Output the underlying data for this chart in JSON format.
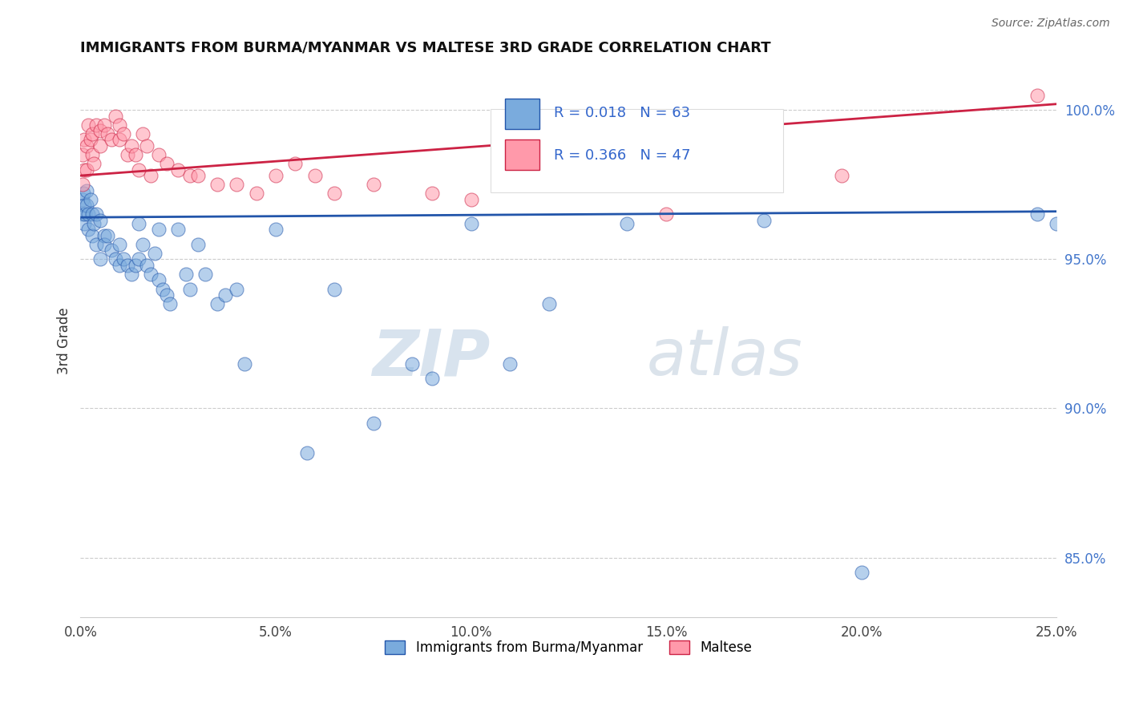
{
  "title": "IMMIGRANTS FROM BURMA/MYANMAR VS MALTESE 3RD GRADE CORRELATION CHART",
  "source": "Source: ZipAtlas.com",
  "ylabel": "3rd Grade",
  "x_tick_labels": [
    "0.0%",
    "5.0%",
    "10.0%",
    "15.0%",
    "20.0%",
    "25.0%"
  ],
  "x_tick_vals": [
    0.0,
    5.0,
    10.0,
    15.0,
    20.0,
    25.0
  ],
  "y_tick_labels": [
    "85.0%",
    "90.0%",
    "95.0%",
    "100.0%"
  ],
  "y_tick_vals": [
    85.0,
    90.0,
    95.0,
    100.0
  ],
  "xlim": [
    0.0,
    25.0
  ],
  "ylim": [
    83.0,
    101.5
  ],
  "legend_label1": "Immigrants from Burma/Myanmar",
  "legend_label2": "Maltese",
  "legend_r1": "R = 0.018",
  "legend_n1": "N = 63",
  "legend_r2": "R = 0.366",
  "legend_n2": "N = 47",
  "blue_color": "#7AABDD",
  "pink_color": "#FF99AA",
  "blue_line_color": "#2255AA",
  "pink_line_color": "#CC2244",
  "blue_scatter_x": [
    0.05,
    0.05,
    0.08,
    0.1,
    0.1,
    0.12,
    0.15,
    0.15,
    0.2,
    0.2,
    0.25,
    0.3,
    0.3,
    0.35,
    0.4,
    0.4,
    0.5,
    0.5,
    0.6,
    0.6,
    0.7,
    0.8,
    0.9,
    1.0,
    1.0,
    1.1,
    1.2,
    1.3,
    1.4,
    1.5,
    1.5,
    1.6,
    1.7,
    1.8,
    1.9,
    2.0,
    2.0,
    2.1,
    2.2,
    2.3,
    2.5,
    2.7,
    2.8,
    3.0,
    3.2,
    3.5,
    3.7,
    4.0,
    4.2,
    5.0,
    5.8,
    6.5,
    7.5,
    8.5,
    9.0,
    10.0,
    11.0,
    12.0,
    14.0,
    17.5,
    20.0,
    24.5,
    25.0
  ],
  "blue_scatter_y": [
    97.0,
    96.5,
    97.2,
    96.8,
    96.2,
    96.5,
    96.8,
    97.3,
    96.5,
    96.0,
    97.0,
    96.5,
    95.8,
    96.2,
    96.5,
    95.5,
    96.3,
    95.0,
    95.8,
    95.5,
    95.8,
    95.3,
    95.0,
    95.5,
    94.8,
    95.0,
    94.8,
    94.5,
    94.8,
    96.2,
    95.0,
    95.5,
    94.8,
    94.5,
    95.2,
    94.3,
    96.0,
    94.0,
    93.8,
    93.5,
    96.0,
    94.5,
    94.0,
    95.5,
    94.5,
    93.5,
    93.8,
    94.0,
    91.5,
    96.0,
    88.5,
    94.0,
    89.5,
    91.5,
    91.0,
    96.2,
    91.5,
    93.5,
    96.2,
    96.3,
    84.5,
    96.5,
    96.2
  ],
  "pink_scatter_x": [
    0.05,
    0.05,
    0.1,
    0.1,
    0.15,
    0.15,
    0.2,
    0.25,
    0.3,
    0.3,
    0.35,
    0.4,
    0.5,
    0.5,
    0.6,
    0.7,
    0.8,
    0.9,
    1.0,
    1.0,
    1.1,
    1.2,
    1.3,
    1.4,
    1.5,
    1.6,
    1.7,
    1.8,
    2.0,
    2.2,
    2.5,
    2.8,
    3.0,
    3.5,
    4.0,
    4.5,
    5.0,
    5.5,
    6.0,
    6.5,
    7.5,
    9.0,
    10.0,
    12.0,
    15.0,
    19.5,
    24.5
  ],
  "pink_scatter_y": [
    98.5,
    97.5,
    99.0,
    98.0,
    98.8,
    98.0,
    99.5,
    99.0,
    99.2,
    98.5,
    98.2,
    99.5,
    99.3,
    98.8,
    99.5,
    99.2,
    99.0,
    99.8,
    99.5,
    99.0,
    99.2,
    98.5,
    98.8,
    98.5,
    98.0,
    99.2,
    98.8,
    97.8,
    98.5,
    98.2,
    98.0,
    97.8,
    97.8,
    97.5,
    97.5,
    97.2,
    97.8,
    98.2,
    97.8,
    97.2,
    97.5,
    97.2,
    97.0,
    97.5,
    96.5,
    97.8,
    100.5
  ],
  "blue_trendline_x": [
    0.0,
    25.0
  ],
  "blue_trendline_y": [
    96.4,
    96.6
  ],
  "pink_trendline_x": [
    0.0,
    25.0
  ],
  "pink_trendline_y": [
    97.8,
    100.2
  ]
}
